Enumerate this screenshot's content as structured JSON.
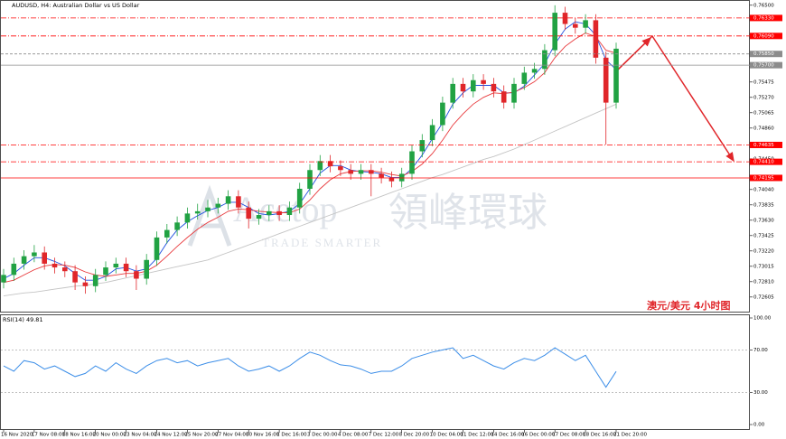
{
  "watermark": {
    "brand": "Acetop",
    "name": "領峰環球",
    "slogan": "TRADE SMARTER"
  },
  "chart_data": [
    {
      "type": "candlestick",
      "title": "AUDUSD, H4: Australian Dollar vs US Dollar",
      "annotation": "澳元/美元  4小时图",
      "categories": [
        "16 Nov 2020",
        null,
        null,
        "17 Nov 08:00",
        null,
        null,
        "18 Nov 16:00",
        null,
        null,
        "20 Nov 00:00",
        null,
        null,
        "23 Nov 04:00",
        null,
        null,
        "24 Nov 12:00",
        null,
        null,
        "25 Nov 20:00",
        null,
        null,
        "27 Nov 04:00",
        null,
        null,
        "30 Nov 16:00",
        null,
        null,
        "1 Dec 16:00",
        null,
        null,
        "3 Dec 00:00",
        null,
        null,
        "4 Dec 08:00",
        null,
        null,
        "7 Dec 12:00",
        null,
        null,
        "8 Dec 20:00",
        null,
        null,
        "10 Dec 04:00",
        null,
        null,
        "11 Dec 12:00",
        null,
        null,
        "14 Dec 16:00",
        null,
        null,
        "16 Dec 00:00",
        null,
        null,
        "17 Dec 08:00",
        null,
        null,
        "18 Dec 16:00",
        null,
        null,
        "21 Dec 20:00"
      ],
      "open": [
        0.728,
        0.729,
        0.7305,
        0.7315,
        0.732,
        0.7305,
        0.73,
        0.7295,
        0.728,
        0.7275,
        0.729,
        0.73,
        0.7305,
        0.7295,
        0.7285,
        0.731,
        0.734,
        0.735,
        0.736,
        0.7372,
        0.7375,
        0.738,
        0.7385,
        0.7395,
        0.738,
        0.7365,
        0.737,
        0.7375,
        0.737,
        0.738,
        0.7405,
        0.743,
        0.7442,
        0.7435,
        0.743,
        0.7425,
        0.743,
        0.7425,
        0.742,
        0.7415,
        0.7425,
        0.7455,
        0.747,
        0.749,
        0.752,
        0.7545,
        0.7535,
        0.755,
        0.7545,
        0.7535,
        0.752,
        0.7545,
        0.756,
        0.7565,
        0.759,
        0.764,
        0.7625,
        0.762,
        0.763,
        0.758,
        0.752
      ],
      "high": [
        0.7298,
        0.7313,
        0.7323,
        0.733,
        0.7328,
        0.7313,
        0.7308,
        0.7303,
        0.7288,
        0.7298,
        0.7308,
        0.7313,
        0.7313,
        0.7303,
        0.7318,
        0.7348,
        0.7358,
        0.7368,
        0.738,
        0.7385,
        0.739,
        0.7393,
        0.7403,
        0.7403,
        0.7388,
        0.7378,
        0.7383,
        0.7383,
        0.7388,
        0.7413,
        0.7438,
        0.745,
        0.745,
        0.7443,
        0.7438,
        0.7438,
        0.7438,
        0.7433,
        0.7428,
        0.7433,
        0.7463,
        0.7478,
        0.7498,
        0.7528,
        0.7553,
        0.7553,
        0.7558,
        0.7558,
        0.7553,
        0.7543,
        0.7553,
        0.7568,
        0.7573,
        0.7598,
        0.765,
        0.7648,
        0.7633,
        0.7638,
        0.7638,
        0.7588,
        0.76
      ],
      "low": [
        0.7272,
        0.7282,
        0.7297,
        0.7307,
        0.7297,
        0.7292,
        0.7287,
        0.727,
        0.7265,
        0.7267,
        0.7282,
        0.7292,
        0.7287,
        0.727,
        0.7277,
        0.7302,
        0.7332,
        0.7342,
        0.7352,
        0.7364,
        0.7367,
        0.7372,
        0.7377,
        0.7372,
        0.7352,
        0.7357,
        0.7362,
        0.7362,
        0.7362,
        0.7372,
        0.7397,
        0.7422,
        0.7427,
        0.7422,
        0.7417,
        0.7417,
        0.7395,
        0.7412,
        0.7407,
        0.7407,
        0.7417,
        0.7447,
        0.7462,
        0.7482,
        0.7512,
        0.7527,
        0.7527,
        0.7537,
        0.7527,
        0.7512,
        0.7512,
        0.7537,
        0.7552,
        0.7557,
        0.7582,
        0.7617,
        0.7612,
        0.7612,
        0.7572,
        0.7464,
        0.7512
      ],
      "close": [
        0.729,
        0.7305,
        0.7315,
        0.732,
        0.7305,
        0.73,
        0.7295,
        0.728,
        0.7275,
        0.729,
        0.73,
        0.7305,
        0.7295,
        0.7285,
        0.731,
        0.734,
        0.735,
        0.736,
        0.7372,
        0.7375,
        0.738,
        0.7385,
        0.7395,
        0.738,
        0.7365,
        0.737,
        0.7375,
        0.737,
        0.738,
        0.7405,
        0.743,
        0.7442,
        0.7435,
        0.743,
        0.7425,
        0.743,
        0.7425,
        0.742,
        0.7415,
        0.7425,
        0.7455,
        0.747,
        0.749,
        0.752,
        0.7545,
        0.7535,
        0.755,
        0.7545,
        0.7535,
        0.752,
        0.7545,
        0.756,
        0.7565,
        0.759,
        0.764,
        0.7625,
        0.762,
        0.763,
        0.758,
        0.752,
        0.7592
      ],
      "up_color": "#21a243",
      "down_color": "#e0262a",
      "series": [
        {
          "color": "#1f4fe0",
          "values": [
            0.7285,
            0.7292,
            0.7303,
            0.7313,
            0.7313,
            0.7308,
            0.7302,
            0.7292,
            0.7283,
            0.7283,
            0.7288,
            0.7298,
            0.73,
            0.7295,
            0.7298,
            0.7312,
            0.7333,
            0.735,
            0.7361,
            0.7369,
            0.7376,
            0.738,
            0.7387,
            0.7387,
            0.738,
            0.7372,
            0.737,
            0.7372,
            0.7375,
            0.7385,
            0.7405,
            0.7426,
            0.7436,
            0.7436,
            0.743,
            0.7428,
            0.7427,
            0.7425,
            0.742,
            0.742,
            0.7432,
            0.745,
            0.7472,
            0.7493,
            0.7518,
            0.7533,
            0.7543,
            0.7543,
            0.7543,
            0.7533,
            0.7533,
            0.7542,
            0.7557,
            0.7572,
            0.7598,
            0.7618,
            0.7628,
            0.7625,
            0.761,
            0.7577,
            0.7564
          ]
        },
        {
          "color": "#e8383b",
          "values": [
            0.728,
            0.7283,
            0.729,
            0.7297,
            0.7302,
            0.7304,
            0.7303,
            0.73,
            0.7294,
            0.729,
            0.7288,
            0.729,
            0.7292,
            0.7292,
            0.7295,
            0.7303,
            0.7315,
            0.7328,
            0.734,
            0.7351,
            0.736,
            0.7367,
            0.7375,
            0.7378,
            0.7377,
            0.7375,
            0.7374,
            0.7373,
            0.7373,
            0.7378,
            0.739,
            0.7405,
            0.7417,
            0.7425,
            0.7428,
            0.7429,
            0.7429,
            0.7427,
            0.7424,
            0.7422,
            0.7428,
            0.7438,
            0.7452,
            0.747,
            0.749,
            0.7505,
            0.7518,
            0.7527,
            0.7533,
            0.7532,
            0.7534,
            0.754,
            0.7548,
            0.756,
            0.758,
            0.7595,
            0.7605,
            0.7613,
            0.7608,
            0.759,
            0.7586
          ]
        },
        {
          "color": "#c4c4c4",
          "values": [
            0.7262,
            0.7264,
            0.7266,
            0.7267,
            0.7269,
            0.7271,
            0.7273,
            0.7275,
            0.7276,
            0.7278,
            0.728,
            0.7283,
            0.7286,
            0.7289,
            0.7292,
            0.7295,
            0.7298,
            0.7301,
            0.7304,
            0.7307,
            0.731,
            0.7315,
            0.732,
            0.7325,
            0.733,
            0.7335,
            0.734,
            0.7345,
            0.735,
            0.7355,
            0.736,
            0.7365,
            0.737,
            0.7375,
            0.738,
            0.7385,
            0.739,
            0.7395,
            0.74,
            0.7405,
            0.741,
            0.7415,
            0.742,
            0.7424,
            0.7429,
            0.7434,
            0.7439,
            0.7444,
            0.7448,
            0.7453,
            0.7458,
            0.7464,
            0.747,
            0.7476,
            0.7482,
            0.7488,
            0.7494,
            0.75,
            0.7506,
            0.7512,
            0.7518
          ]
        }
      ],
      "levels": [
        {
          "value": 0.7633,
          "label": "0.76330",
          "color": "#ff0000",
          "style": "dashdot"
        },
        {
          "value": 0.7609,
          "label": "0.76090",
          "color": "#ff0000",
          "style": "dashdot"
        },
        {
          "value": 0.7585,
          "label": "0.75850",
          "color": "#8c8c8c",
          "style": "dashed"
        },
        {
          "value": 0.757,
          "label": "0.75700",
          "color": "#8c8c8c",
          "style": "solid"
        },
        {
          "value": 0.74635,
          "label": "0.74635",
          "color": "#ff0000",
          "style": "dashdot"
        },
        {
          "value": 0.7441,
          "label": "0.74410",
          "color": "#ff0000",
          "style": "dashdot"
        },
        {
          "value": 0.74195,
          "label": "0.74195",
          "color": "#ff0000",
          "style": "solid"
        }
      ],
      "ylim": [
        0.7241,
        0.7657
      ],
      "yticks": [
        {
          "value": 0.765,
          "label": "0.76500"
        },
        {
          "value": 0.7568,
          "label": "0.75680"
        },
        {
          "value": 0.75475,
          "label": "0.75475"
        },
        {
          "value": 0.7527,
          "label": "0.75270"
        },
        {
          "value": 0.75065,
          "label": "0.75065"
        },
        {
          "value": 0.7486,
          "label": "0.74860"
        },
        {
          "value": 0.7445,
          "label": "0.74450"
        },
        {
          "value": 0.7404,
          "label": "0.74040"
        },
        {
          "value": 0.73835,
          "label": "0.73835"
        },
        {
          "value": 0.7363,
          "label": "0.73630"
        },
        {
          "value": 0.73425,
          "label": "0.73425"
        },
        {
          "value": 0.7322,
          "label": "0.73220"
        },
        {
          "value": 0.73015,
          "label": "0.73015"
        },
        {
          "value": 0.7281,
          "label": "0.72810"
        },
        {
          "value": 0.72605,
          "label": "0.72605"
        }
      ]
    },
    {
      "type": "line",
      "title": "RSI(14) 49.81",
      "color": "#3c8ee8",
      "values": [
        55,
        50,
        60,
        58,
        52,
        55,
        50,
        45,
        48,
        55,
        50,
        58,
        52,
        48,
        55,
        60,
        62,
        58,
        60,
        55,
        58,
        60,
        62,
        55,
        50,
        52,
        55,
        50,
        55,
        62,
        68,
        65,
        60,
        56,
        55,
        52,
        48,
        50,
        50,
        55,
        62,
        65,
        68,
        70,
        72,
        62,
        65,
        60,
        55,
        52,
        58,
        62,
        60,
        65,
        72,
        66,
        60,
        65,
        50,
        35,
        49.81
      ],
      "ylim": [
        0,
        100
      ],
      "yticks": [
        {
          "value": 100,
          "label": "100.00"
        },
        {
          "value": 70,
          "label": "70.00"
        },
        {
          "value": 30,
          "label": "30.00"
        },
        {
          "value": 0,
          "label": "0.00"
        }
      ]
    }
  ]
}
